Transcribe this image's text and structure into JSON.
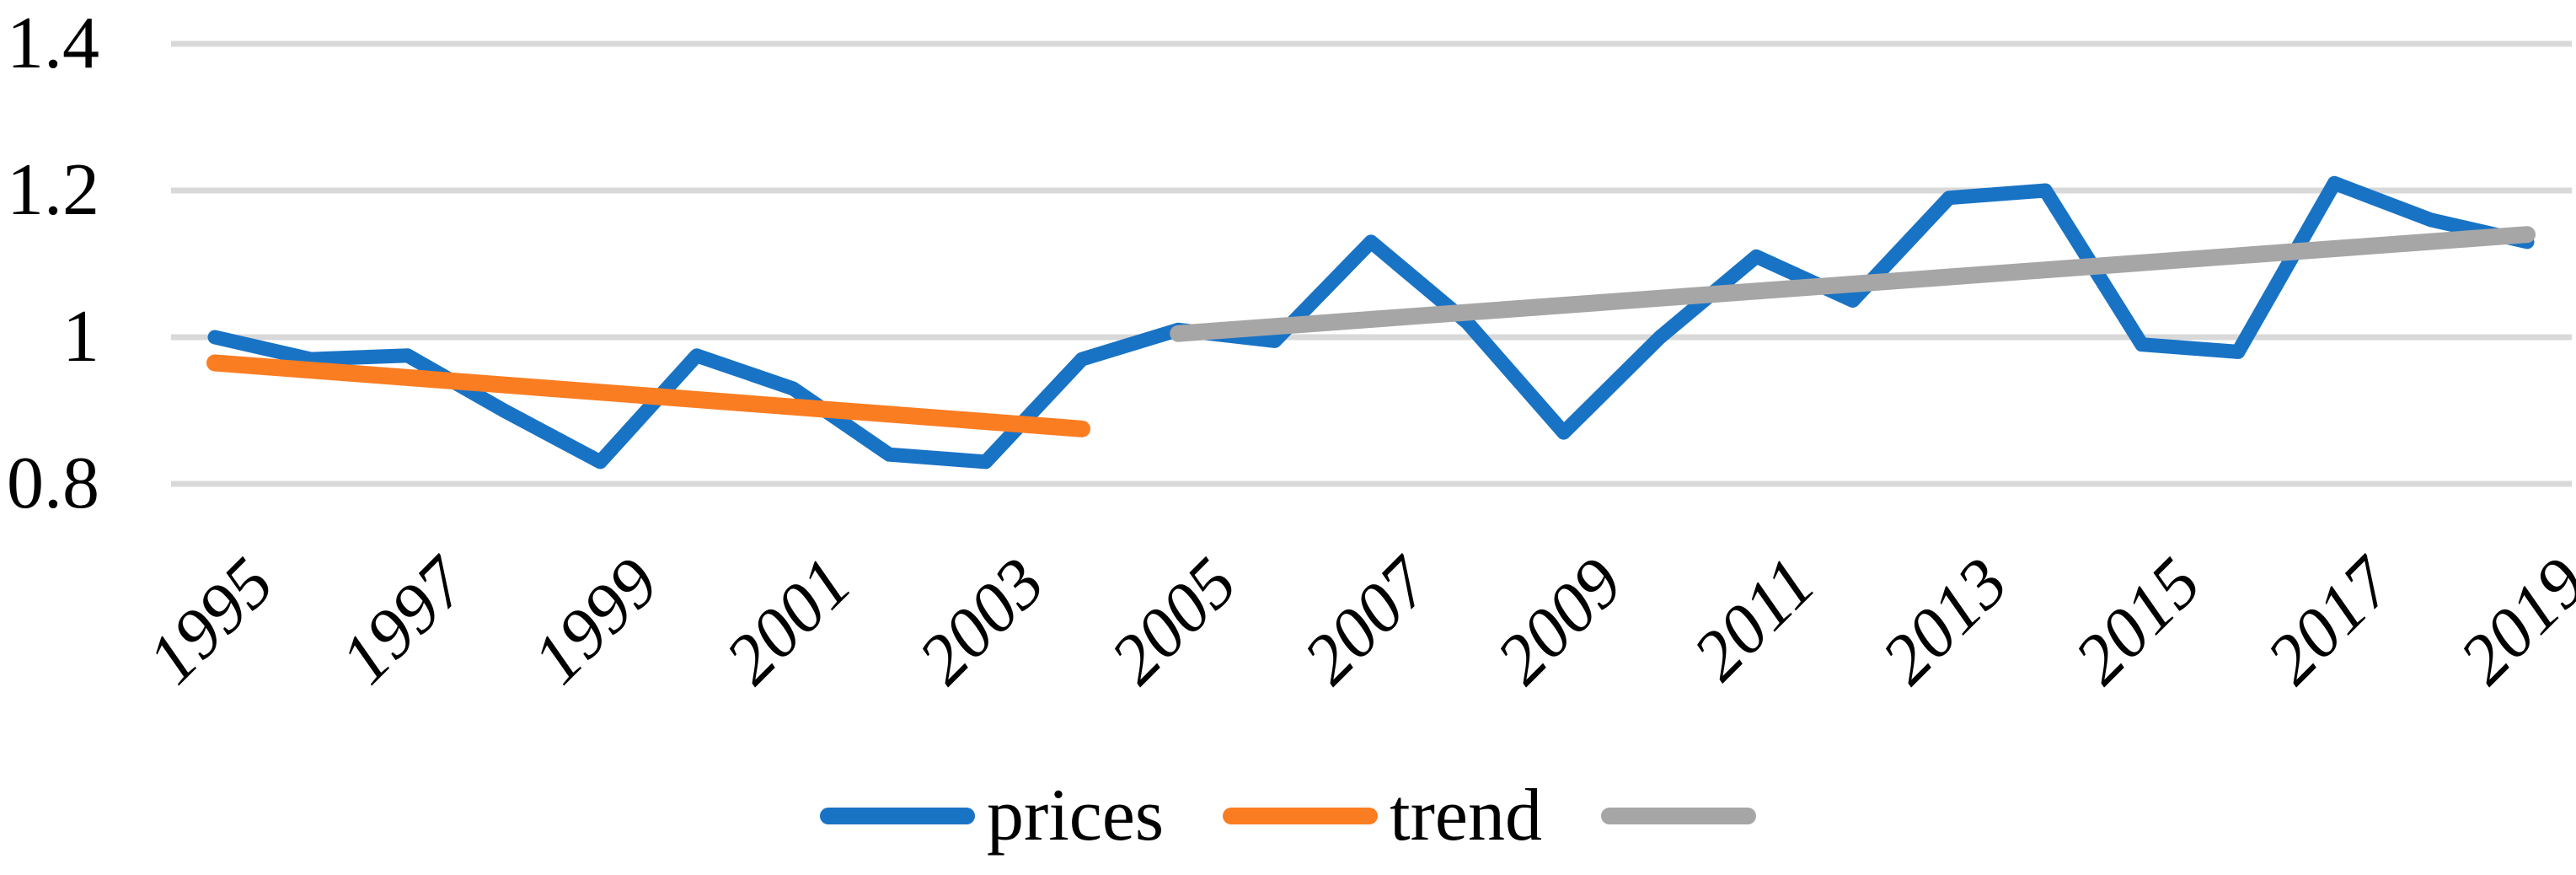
{
  "chart_data": {
    "type": "line",
    "title": "",
    "xlabel": "",
    "ylabel": "",
    "x": [
      1995,
      1996,
      1997,
      1998,
      1999,
      2000,
      2001,
      2002,
      2003,
      2004,
      2005,
      2006,
      2007,
      2008,
      2009,
      2010,
      2011,
      2012,
      2013,
      2014,
      2015,
      2016,
      2017,
      2018,
      2019
    ],
    "series": [
      {
        "name": "prices",
        "kind": "data-line",
        "color": "#1973C5",
        "x": [
          1995,
          1996,
          1997,
          1998,
          1999,
          2000,
          2001,
          2002,
          2003,
          2004,
          2005,
          2006,
          2007,
          2008,
          2009,
          2010,
          2011,
          2012,
          2013,
          2014,
          2015,
          2016,
          2017,
          2018,
          2019
        ],
        "values": [
          1.0,
          0.97,
          0.975,
          0.9,
          0.83,
          0.975,
          0.93,
          0.84,
          0.83,
          0.97,
          1.01,
          0.995,
          1.13,
          1.02,
          0.87,
          1.0,
          1.11,
          1.05,
          1.19,
          1.2,
          0.99,
          0.98,
          1.21,
          1.16,
          1.13
        ],
        "stroke_width": 17
      },
      {
        "name": "trend",
        "kind": "trendline",
        "color": "#FB7D22",
        "x": [
          1995,
          2004
        ],
        "values": [
          0.965,
          0.875
        ],
        "stroke_width": 20
      },
      {
        "name": "",
        "kind": "trendline",
        "color": "#A6A6A6",
        "x": [
          2005,
          2019
        ],
        "values": [
          1.005,
          1.14
        ],
        "stroke_width": 20
      }
    ],
    "x_tick_years": [
      1995,
      1997,
      1999,
      2001,
      2003,
      2005,
      2007,
      2009,
      2011,
      2013,
      2015,
      2017,
      2019
    ],
    "x_tick_labels": [
      "1995",
      "1997",
      "1999",
      "2001",
      "2003",
      "2005",
      "2007",
      "2009",
      "2011",
      "2013",
      "2015",
      "2017",
      "2019"
    ],
    "y_ticks": [
      1.4,
      1.2,
      1.0,
      0.8
    ],
    "y_tick_labels": [
      "1.4",
      "1.2",
      "1",
      "0.8"
    ],
    "ylim": [
      0.8,
      1.4
    ],
    "grid": "horizontal",
    "gridline_color": "#D9D9D9",
    "legend_position": "bottom"
  },
  "legend": {
    "items": [
      {
        "label": "prices",
        "color": "#1973C5"
      },
      {
        "label": "trend",
        "color": "#FB7D22"
      },
      {
        "label": "",
        "color": "#A6A6A6"
      }
    ]
  },
  "colors": {
    "background": "#FFFFFF",
    "text": "#000000",
    "gridline": "#D9D9D9"
  }
}
